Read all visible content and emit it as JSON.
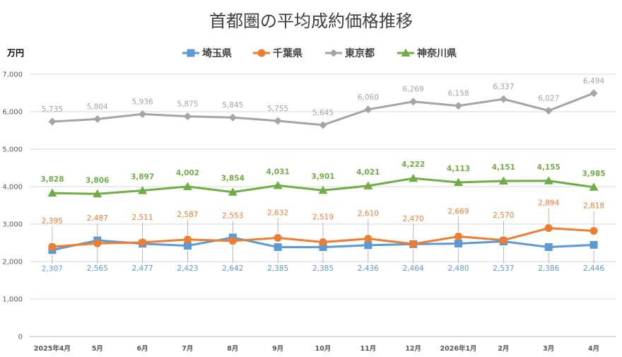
{
  "chart_data": {
    "type": "line",
    "title": "首都圏の平均成約価格推移",
    "unit_label": "万円",
    "categories": [
      "2025年4月",
      "5月",
      "6月",
      "7月",
      "8月",
      "9月",
      "10月",
      "11月",
      "12月",
      "2026年1月",
      "2月",
      "3月",
      "4月"
    ],
    "ylim": [
      0,
      7000
    ],
    "yticks": [
      0,
      1000,
      2000,
      3000,
      4000,
      5000,
      6000,
      7000
    ],
    "ytick_labels": [
      "0",
      "1,000",
      "2,000",
      "3,000",
      "4,000",
      "5,000",
      "6,000",
      "7,000"
    ],
    "grid": true,
    "legend_position": "top",
    "series": [
      {
        "name": "埼玉県",
        "color": "#5B9BD5",
        "marker": "square",
        "values": [
          2307,
          2565,
          2477,
          2423,
          2642,
          2385,
          2385,
          2436,
          2464,
          2480,
          2537,
          2386,
          2446
        ],
        "labels": [
          "2,307",
          "2,565",
          "2,477",
          "2,423",
          "2,642",
          "2,385",
          "2,385",
          "2,436",
          "2,464",
          "2,480",
          "2,537",
          "2,386",
          "2,446"
        ]
      },
      {
        "name": "千葉県",
        "color": "#ED7D31",
        "marker": "circle",
        "values": [
          2395,
          2487,
          2511,
          2587,
          2553,
          2632,
          2519,
          2610,
          2470,
          2669,
          2570,
          2894,
          2818
        ],
        "labels": [
          "2,395",
          "2,487",
          "2,511",
          "2,587",
          "2,553",
          "2,632",
          "2,519",
          "2,610",
          "2,470",
          "2,669",
          "2,570",
          "2,894",
          "2,818"
        ]
      },
      {
        "name": "東京都",
        "color": "#A5A5A5",
        "marker": "diamond",
        "values": [
          5735,
          5804,
          5936,
          5875,
          5845,
          5755,
          5645,
          6060,
          6269,
          6158,
          6337,
          6027,
          6494
        ],
        "labels": [
          "5,735",
          "5,804",
          "5,936",
          "5,875",
          "5,845",
          "5,755",
          "5,645",
          "6,060",
          "6,269",
          "6,158",
          "6,337",
          "6,027",
          "6,494"
        ]
      },
      {
        "name": "神奈川県",
        "color": "#70AD47",
        "marker": "triangle",
        "values": [
          3828,
          3806,
          3897,
          4002,
          3854,
          4031,
          3901,
          4021,
          4222,
          4113,
          4151,
          4155,
          3985
        ],
        "labels": [
          "3,828",
          "3,806",
          "3,897",
          "4,002",
          "3,854",
          "4,031",
          "3,901",
          "4,021",
          "4,222",
          "4,113",
          "4,151",
          "4,155",
          "3,985"
        ]
      }
    ]
  }
}
